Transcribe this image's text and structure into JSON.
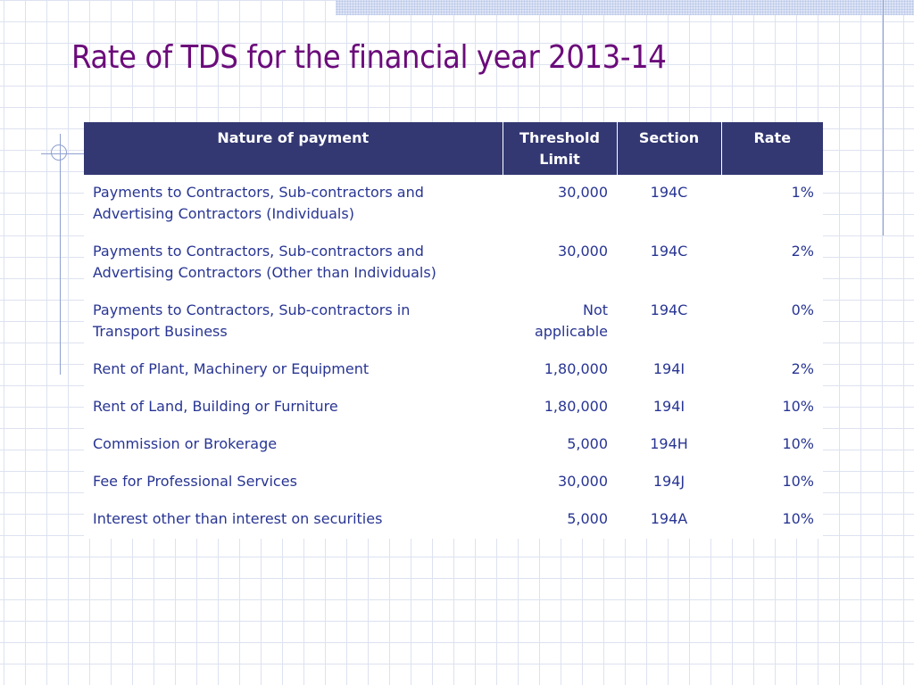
{
  "slide": {
    "title": "Rate of TDS for the financial year 2013-14"
  },
  "table": {
    "headers": {
      "nature": "Nature of payment",
      "threshold_line1": "Threshold",
      "threshold_line2": "Limit",
      "section": "Section",
      "rate": "Rate"
    },
    "rows": [
      {
        "nature_line1": "Payments to Contractors, Sub-contractors and",
        "nature_line2": "Advertising Contractors (Individuals)",
        "threshold_line1": "30,000",
        "threshold_line2": "",
        "section": "194C",
        "rate": "1%"
      },
      {
        "nature_line1": "Payments to Contractors, Sub-contractors and",
        "nature_line2": "Advertising Contractors (Other than Individuals)",
        "threshold_line1": "30,000",
        "threshold_line2": "",
        "section": "194C",
        "rate": "2%"
      },
      {
        "nature_line1": "Payments to Contractors, Sub-contractors in",
        "nature_line2": "Transport Business",
        "threshold_line1": "Not",
        "threshold_line2": "applicable",
        "section": "194C",
        "rate": "0%"
      },
      {
        "nature_line1": "Rent of Plant, Machinery or Equipment",
        "nature_line2": "",
        "threshold_line1": "1,80,000",
        "threshold_line2": "",
        "section": "194I",
        "rate": "2%"
      },
      {
        "nature_line1": "Rent of Land, Building or Furniture",
        "nature_line2": "",
        "threshold_line1": "1,80,000",
        "threshold_line2": "",
        "section": "194I",
        "rate": "10%"
      },
      {
        "nature_line1": "Commission or Brokerage",
        "nature_line2": "",
        "threshold_line1": "5,000",
        "threshold_line2": "",
        "section": "194H",
        "rate": "10%"
      },
      {
        "nature_line1": "Fee for Professional Services",
        "nature_line2": "",
        "threshold_line1": "30,000",
        "threshold_line2": "",
        "section": "194J",
        "rate": "10%"
      },
      {
        "nature_line1": "Interest other than interest on securities",
        "nature_line2": "",
        "threshold_line1": "5,000",
        "threshold_line2": "",
        "section": "194A",
        "rate": "10%"
      }
    ]
  },
  "theme": {
    "title_color": "#6b0b7a",
    "header_bg": "#333872",
    "header_text": "#ffffff",
    "body_text": "#283593",
    "grid_line": "#dde2f0"
  }
}
